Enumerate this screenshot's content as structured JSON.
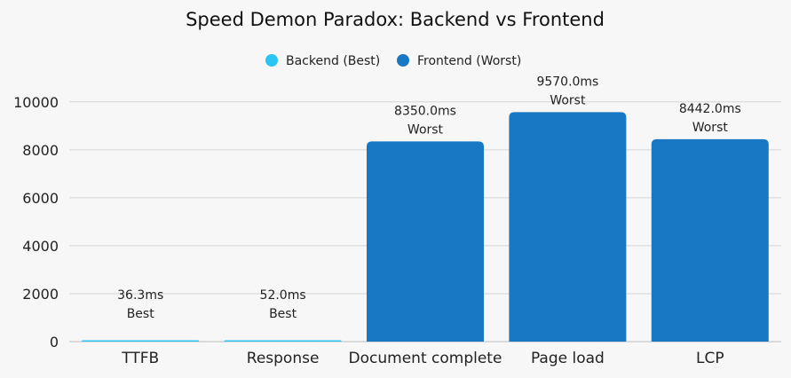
{
  "chart_data": {
    "type": "bar",
    "title": "Speed Demon Paradox: Backend vs Frontend",
    "categories": [
      "TTFB",
      "Response",
      "Document complete",
      "Page load",
      "LCP"
    ],
    "values": [
      36.3,
      52.0,
      8350.0,
      9570.0,
      8442.0
    ],
    "value_labels": [
      "36.3ms",
      "52.0ms",
      "8350.0ms",
      "9570.0ms",
      "8442.0ms"
    ],
    "bar_tags": [
      "Best",
      "Best",
      "Worst",
      "Worst",
      "Worst"
    ],
    "bar_series": [
      0,
      0,
      1,
      1,
      1
    ],
    "series": [
      {
        "name": "Backend (Best)",
        "color": "#29c5f6"
      },
      {
        "name": "Frontend (Worst)",
        "color": "#1878c4"
      }
    ],
    "y_ticks": [
      "0",
      "2000",
      "4000",
      "6000",
      "8000",
      "10000"
    ],
    "y_tick_values": [
      0,
      2000,
      4000,
      6000,
      8000,
      10000
    ],
    "ylim": [
      0,
      10400
    ],
    "grid": true,
    "legend_position": "top-center",
    "xlabel": "",
    "ylabel": ""
  }
}
